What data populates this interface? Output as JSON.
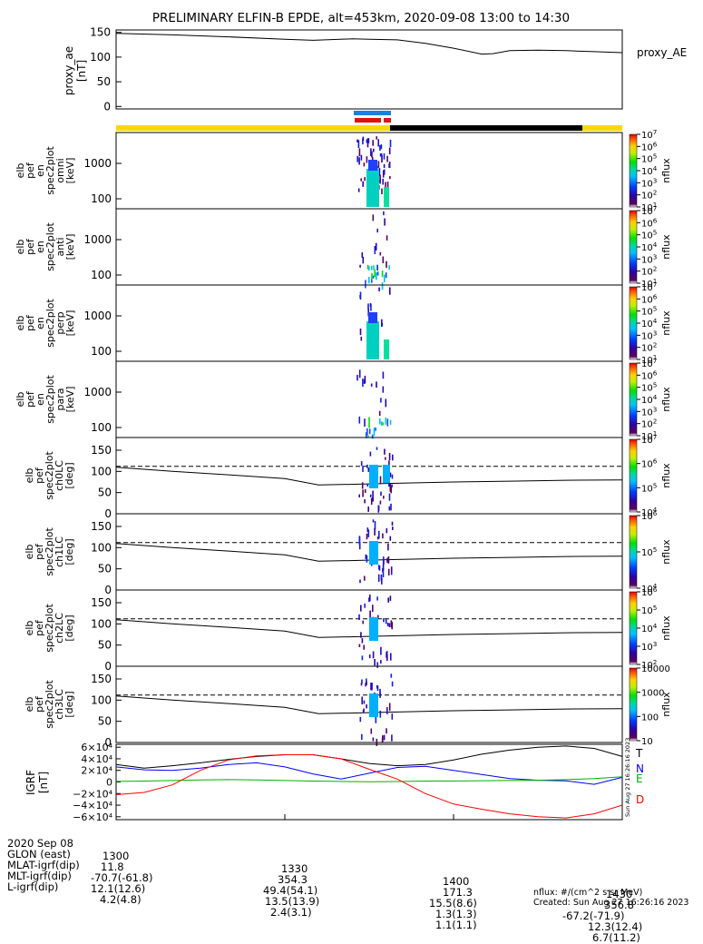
{
  "title": "PRELIMINARY ELFIN-B EPDE, alt=453km, 2020-09-08 13:00 to 14:30",
  "colors": {
    "gold": "#ffd700",
    "blue": "#1e7fe0",
    "red": "#e01010",
    "green": "#00a000"
  },
  "chart_data": [
    {
      "type": "line",
      "panel": "proxy_ae",
      "ylabel": "proxy_ae [nT]",
      "legend": "proxy_AE",
      "ylim": [
        -5,
        155
      ],
      "yticks": [
        "150",
        "100",
        "50",
        "0"
      ],
      "ytick_values": [
        150,
        100,
        50,
        0
      ],
      "x_minutes": [
        0,
        10,
        20,
        30,
        35,
        42,
        45,
        50,
        55,
        60,
        65,
        67,
        70,
        75,
        80,
        85,
        90
      ],
      "values": [
        148,
        145,
        141,
        136,
        134,
        137,
        136,
        135,
        128,
        118,
        106,
        107,
        113,
        114,
        113,
        111,
        109
      ]
    },
    {
      "type": "bar",
      "panel": "status-bars",
      "science_zone_bar": {
        "color": "gold",
        "x_range": [
          0,
          90
        ]
      },
      "night_bar": {
        "color": "black",
        "x_range": [
          44,
          84
        ]
      },
      "blue_bar": {
        "x_range": [
          35,
          44
        ]
      },
      "red_bars": [
        {
          "x_range": [
            35,
            41.5
          ]
        },
        {
          "x_range": [
            42,
            44
          ]
        }
      ]
    },
    {
      "type": "heatmap",
      "panels": [
        {
          "id": "omni",
          "ylabel": [
            "elb",
            "pef",
            "en",
            "spec2plot",
            "omni",
            "[keV]"
          ],
          "yticks": [
            "1000",
            "100"
          ]
        },
        {
          "id": "anti",
          "ylabel": [
            "elb",
            "pef",
            "en",
            "spec2plot",
            "anti",
            "[keV]"
          ],
          "yticks": [
            "1000",
            "100"
          ]
        },
        {
          "id": "perp",
          "ylabel": [
            "elb",
            "pef",
            "en",
            "spec2plot",
            "perp",
            "[keV]"
          ],
          "yticks": [
            "1000",
            "100"
          ]
        },
        {
          "id": "para",
          "ylabel": [
            "elb",
            "pef",
            "en",
            "spec2plot",
            "para",
            "[keV]"
          ],
          "yticks": [
            "1000",
            "100"
          ]
        }
      ],
      "colorbar": {
        "label": "nflux",
        "ticks": [
          "10^7",
          "10^6",
          "10^5",
          "10^4",
          "10^3",
          "10^2",
          "10^1"
        ]
      }
    },
    {
      "type": "heatmap",
      "panels": [
        {
          "id": "ch0LC",
          "ylabel": [
            "elb",
            "pef",
            "spec2plot",
            "ch0LC",
            "[deg]"
          ],
          "yticks": [
            "150",
            "100",
            "50",
            "0"
          ],
          "colorbar": [
            "10^7",
            "10^6",
            "10^5",
            "10^4"
          ]
        },
        {
          "id": "ch1LC",
          "ylabel": [
            "elb",
            "pef",
            "spec2plot",
            "ch1LC",
            "[deg]"
          ],
          "yticks": [
            "150",
            "100",
            "50",
            "0"
          ],
          "colorbar": [
            "10^6",
            "10^5",
            "10^4"
          ]
        },
        {
          "id": "ch2LC",
          "ylabel": [
            "elb",
            "pef",
            "spec2plot",
            "ch2LC",
            "[deg]"
          ],
          "yticks": [
            "150",
            "100",
            "50",
            "0"
          ],
          "colorbar": [
            "10^6",
            "10^5",
            "10^4",
            "10^3",
            "10^2"
          ]
        },
        {
          "id": "ch3LC",
          "ylabel": [
            "elb",
            "pef",
            "spec2plot",
            "ch3LC",
            "[deg]"
          ],
          "yticks": [
            "150",
            "100",
            "50",
            "0"
          ],
          "colorbar": [
            "10000",
            "1000",
            "100",
            "10"
          ]
        }
      ],
      "colorbar_label": "nflux",
      "dashed_reference_deg": 112,
      "loss_cone_x": [
        0,
        10,
        20,
        30,
        36,
        44,
        50,
        60,
        70,
        80,
        90
      ],
      "loss_cone_deg": [
        110,
        100,
        92,
        83,
        68,
        70,
        72,
        75,
        77,
        79,
        80
      ]
    },
    {
      "type": "line",
      "panel": "igrf",
      "ylabel": "IGRF [nT]",
      "ylim": [
        -65000,
        65000
      ],
      "yticks": [
        "6×10⁴",
        "4×10⁴",
        "2×10⁴",
        "0",
        "−2×10⁴",
        "−4×10⁴",
        "−6×10⁴"
      ],
      "ytick_values": [
        60000,
        40000,
        20000,
        0,
        -20000,
        -40000,
        -60000
      ],
      "x_minutes": [
        0,
        5,
        10,
        15,
        20,
        25,
        30,
        35,
        40,
        45,
        50,
        55,
        60,
        65,
        70,
        75,
        80,
        85,
        90
      ],
      "series": [
        {
          "name": "T",
          "color": "#000000",
          "values": [
            30000,
            24000,
            28000,
            33000,
            39000,
            44000,
            47000,
            47000,
            40000,
            32000,
            28000,
            30000,
            38000,
            48000,
            55000,
            60000,
            62000,
            58000,
            44000
          ]
        },
        {
          "name": "N",
          "color": "#0000ff",
          "values": [
            26000,
            21000,
            20000,
            24000,
            30000,
            33000,
            26000,
            14000,
            5000,
            15000,
            25000,
            27000,
            20000,
            13000,
            6000,
            3000,
            2000,
            -4000,
            8000
          ]
        },
        {
          "name": "E",
          "color": "#00b000",
          "values": [
            1000,
            1500,
            2500,
            3500,
            4000,
            3500,
            2500,
            1500,
            1000,
            500,
            800,
            1500,
            1800,
            2200,
            2500,
            3000,
            4000,
            6000,
            9000
          ]
        },
        {
          "name": "D",
          "color": "#ff0000",
          "values": [
            -22000,
            -18000,
            -5000,
            20000,
            38000,
            45000,
            47000,
            47000,
            40000,
            22000,
            5000,
            -20000,
            -38000,
            -47000,
            -55000,
            -60000,
            -62000,
            -55000,
            -40000
          ]
        }
      ]
    }
  ],
  "footer": {
    "rows": [
      {
        "label": "2020 Sep 08",
        "values": [
          "1300",
          "1330",
          "1400",
          "1430"
        ]
      },
      {
        "label": "GLON (east)",
        "values": [
          "11.8",
          "354.3",
          "171.3",
          "356.8"
        ]
      },
      {
        "label": "MLAT-igrf(dip)",
        "values": [
          "-70.7(-61.8)",
          "49.4(54.1)",
          "15.5(8.6)",
          "-67.2(-71.9)"
        ]
      },
      {
        "label": "MLT-igrf(dip)",
        "values": [
          "12.1(12.6)",
          "13.5(13.9)",
          "1.3(1.3)",
          "12.3(12.4)"
        ]
      },
      {
        "label": "L-igrf(dip)",
        "values": [
          "4.2(4.8)",
          "2.4(3.1)",
          "1.1(1.1)",
          "6.7(11.2)"
        ]
      }
    ],
    "units_note": "nflux: #/(cm^2 s sr MeV)",
    "created": "Created: Sun Aug 27 16:26:16 2023",
    "vertical_stamp": "Sun Aug 27 16:26:16 2023"
  }
}
